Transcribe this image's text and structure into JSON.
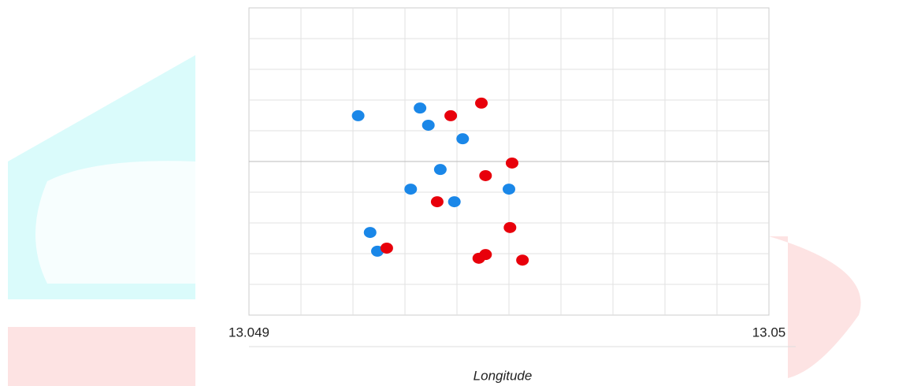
{
  "chart_data": {
    "type": "scatter",
    "x_label": "Longitude",
    "xlim": [
      13.049,
      13.05
    ],
    "xticks": [
      13.049,
      13.05
    ],
    "ylim": [
      -5,
      5
    ],
    "grid": true,
    "series": [
      {
        "color": "#1a87e8",
        "x": [
          13.04921,
          13.049329,
          13.049345,
          13.049411,
          13.049368,
          13.049311,
          13.0495,
          13.049395,
          13.049233,
          13.049247
        ],
        "y": [
          1.49,
          1.74,
          1.18,
          0.74,
          -0.26,
          -0.9,
          -0.9,
          -1.31,
          -2.31,
          -2.92
        ]
      },
      {
        "color": "#e8000b",
        "x": [
          13.049447,
          13.049388,
          13.049506,
          13.049455,
          13.049362,
          13.049502,
          13.049265,
          13.049455,
          13.049442,
          13.049526
        ],
        "y": [
          1.9,
          1.49,
          -0.05,
          -0.46,
          -1.31,
          -2.15,
          -2.82,
          -3.03,
          -3.15,
          -3.21
        ]
      }
    ]
  }
}
